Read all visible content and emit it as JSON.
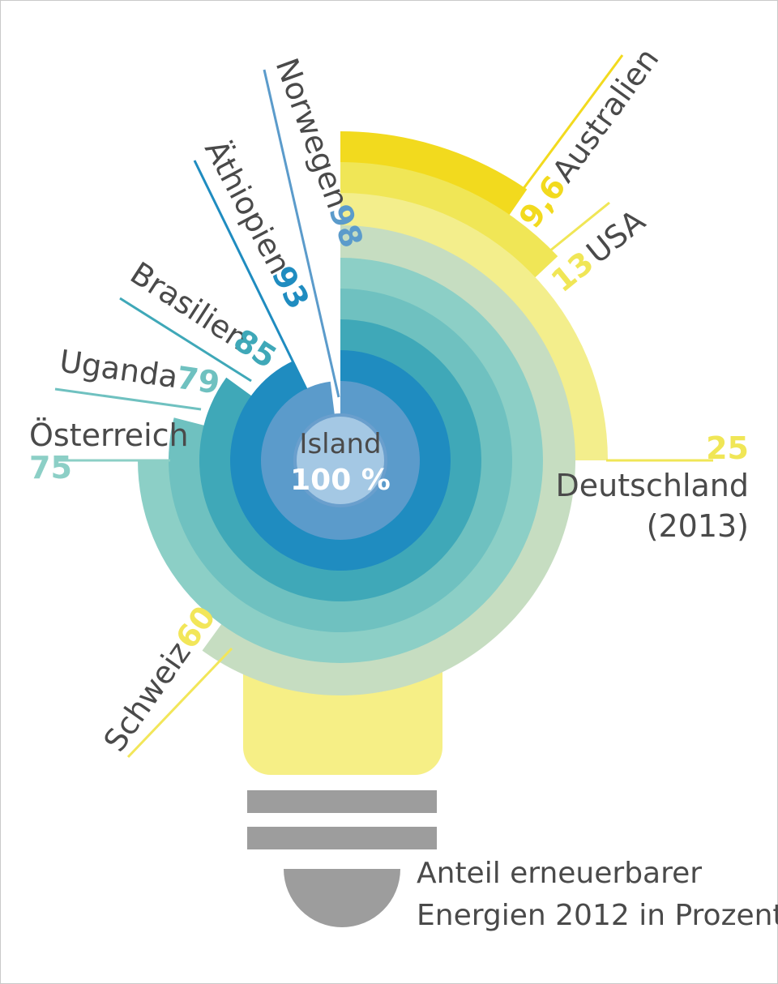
{
  "caption": {
    "line1": "Anteil erneuerbarer",
    "line2": "Energien 2012 in Prozent"
  },
  "center": {
    "country": "Island",
    "value_label": "100 %"
  },
  "colors": {
    "Island_inner": "#a4c8e4",
    "Island": "#6a9fcd",
    "Norwegen": "#5b9bcb",
    "Äthiopien": "#1f8cc0",
    "Brasilien": "#3fa8b8",
    "Uganda": "#6fc1c0",
    "Österreich": "#8ccfc6",
    "Schweiz": "#c6ddc1",
    "Deutschland": "#f3ee8c",
    "USA": "#f0e656",
    "Australien": "#f2da1e",
    "bulb_base": "#f6ef86",
    "socket": "#9d9d9d"
  },
  "chart_data": {
    "type": "radial-bar",
    "unit": "%",
    "series": [
      {
        "country": "Island",
        "value": 100,
        "label": "100 %"
      },
      {
        "country": "Norwegen",
        "value": 98,
        "label": "98"
      },
      {
        "country": "Äthiopien",
        "value": 93,
        "label": "93"
      },
      {
        "country": "Brasilien",
        "value": 85,
        "label": "85"
      },
      {
        "country": "Uganda",
        "value": 79,
        "label": "79"
      },
      {
        "country": "Österreich",
        "value": 75,
        "label": "75"
      },
      {
        "country": "Schweiz",
        "value": 60,
        "label": "60"
      },
      {
        "country": "Deutschland",
        "value": 25,
        "label": "25",
        "note": "(2013)"
      },
      {
        "country": "USA",
        "value": 13,
        "label": "13"
      },
      {
        "country": "Australien",
        "value": 9.6,
        "label": "9,6"
      }
    ]
  }
}
